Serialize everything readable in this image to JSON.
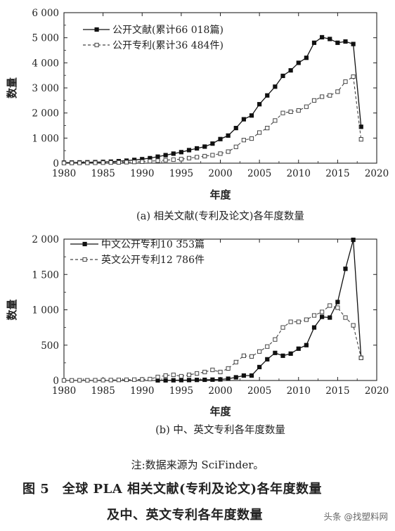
{
  "chart_data": [
    {
      "type": "line",
      "caption": "(a) 相关文献(专利及论文)各年度数量",
      "xlabel": "年度",
      "ylabel": "数量",
      "xlim": [
        1980,
        2020
      ],
      "ylim": [
        0,
        6000
      ],
      "xticks": [
        1980,
        1985,
        1990,
        1995,
        2000,
        2005,
        2010,
        2015,
        2020
      ],
      "yticks": [
        0,
        1000,
        2000,
        3000,
        4000,
        5000,
        6000
      ],
      "ytick_labels": [
        "0",
        "1 000",
        "2 000",
        "3 000",
        "4 000",
        "5 000",
        "6 000"
      ],
      "grid": false,
      "legend_position": "top-left",
      "series": [
        {
          "name": "公开文献(累计66 018篇)",
          "style": "solid",
          "marker": "filled-square",
          "x": [
            1980,
            1981,
            1982,
            1983,
            1984,
            1985,
            1986,
            1987,
            1988,
            1989,
            1990,
            1991,
            1992,
            1993,
            1994,
            1995,
            1996,
            1997,
            1998,
            1999,
            2000,
            2001,
            2002,
            2003,
            2004,
            2005,
            2006,
            2007,
            2008,
            2009,
            2010,
            2011,
            2012,
            2013,
            2014,
            2015,
            2016,
            2017,
            2018
          ],
          "y": [
            20,
            25,
            30,
            35,
            40,
            50,
            60,
            80,
            100,
            130,
            160,
            200,
            260,
            320,
            380,
            440,
            520,
            590,
            660,
            780,
            960,
            1100,
            1400,
            1750,
            1900,
            2350,
            2700,
            3050,
            3480,
            3700,
            4000,
            4200,
            4800,
            5020,
            4950,
            4800,
            4850,
            4750,
            1450
          ]
        },
        {
          "name": "公开专利(累计36 484件)",
          "style": "dashed",
          "marker": "open-square",
          "x": [
            1980,
            1981,
            1982,
            1983,
            1984,
            1985,
            1986,
            1987,
            1988,
            1989,
            1990,
            1991,
            1992,
            1993,
            1994,
            1995,
            1996,
            1997,
            1998,
            1999,
            2000,
            2001,
            2002,
            2003,
            2004,
            2005,
            2006,
            2007,
            2008,
            2009,
            2010,
            2011,
            2012,
            2013,
            2014,
            2015,
            2016,
            2017,
            2018
          ],
          "y": [
            5,
            8,
            10,
            12,
            15,
            20,
            25,
            30,
            40,
            50,
            60,
            80,
            100,
            120,
            140,
            160,
            200,
            240,
            280,
            320,
            380,
            460,
            650,
            920,
            980,
            1220,
            1400,
            1700,
            2000,
            2050,
            2100,
            2250,
            2500,
            2650,
            2700,
            2850,
            3250,
            3450,
            950
          ]
        }
      ]
    },
    {
      "type": "line",
      "caption": "(b) 中、英文专利各年度数量",
      "xlabel": "年度",
      "ylabel": "数量",
      "xlim": [
        1980,
        2020
      ],
      "ylim": [
        0,
        2000
      ],
      "xticks": [
        1980,
        1985,
        1990,
        1995,
        2000,
        2005,
        2010,
        2015,
        2020
      ],
      "yticks": [
        0,
        500,
        1000,
        1500,
        2000
      ],
      "ytick_labels": [
        "0",
        "500",
        "1 000",
        "1 500",
        "2 000"
      ],
      "grid": false,
      "legend_position": "top-left",
      "series": [
        {
          "name": "中文公开专利10 353篇",
          "style": "solid",
          "marker": "filled-square",
          "x": [
            1992,
            1993,
            1994,
            1995,
            1996,
            1997,
            1998,
            1999,
            2000,
            2001,
            2002,
            2003,
            2004,
            2005,
            2006,
            2007,
            2008,
            2009,
            2010,
            2011,
            2012,
            2013,
            2014,
            2015,
            2016,
            2017,
            2018
          ],
          "y": [
            2,
            2,
            3,
            5,
            6,
            8,
            10,
            12,
            15,
            25,
            45,
            70,
            70,
            190,
            300,
            390,
            350,
            380,
            450,
            500,
            750,
            900,
            890,
            1110,
            1580,
            1990,
            320
          ]
        },
        {
          "name": "英文公开专利12 786件",
          "style": "dashed",
          "marker": "open-square",
          "x": [
            1980,
            1981,
            1982,
            1983,
            1984,
            1985,
            1986,
            1987,
            1988,
            1989,
            1990,
            1991,
            1992,
            1993,
            1994,
            1995,
            1996,
            1997,
            1998,
            1999,
            2000,
            2001,
            2002,
            2003,
            2004,
            2005,
            2006,
            2007,
            2008,
            2009,
            2010,
            2011,
            2012,
            2013,
            2014,
            2015,
            2016,
            2017,
            2018
          ],
          "y": [
            2,
            2,
            3,
            3,
            4,
            5,
            6,
            8,
            10,
            12,
            15,
            20,
            50,
            70,
            80,
            60,
            80,
            100,
            120,
            150,
            120,
            170,
            260,
            350,
            340,
            410,
            480,
            580,
            750,
            830,
            830,
            860,
            920,
            970,
            1060,
            1030,
            890,
            780,
            320
          ]
        }
      ]
    }
  ],
  "note": "注:数据来源为 SciFinder。",
  "figure_title_line1": "图 5　全球 PLA 相关文献(专利及论文)各年度数量",
  "figure_title_line2": "及中、英文专利各年度数量",
  "watermark": "头条 @找塑料网"
}
